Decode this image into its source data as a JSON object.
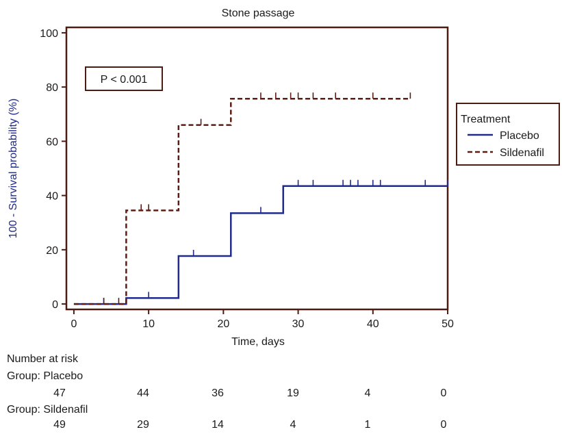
{
  "chart_data": {
    "type": "line",
    "subtype": "kaplan-meier-step",
    "title": "Stone passage",
    "xlabel": "Time, days",
    "ylabel": "100 - Survival probability (%)",
    "xlim": [
      -1,
      50
    ],
    "ylim": [
      -2,
      102
    ],
    "xticks": [
      0,
      10,
      20,
      30,
      40,
      50
    ],
    "yticks": [
      0,
      20,
      40,
      60,
      80,
      100
    ],
    "grid": false,
    "annotation": "P < 0.001",
    "legend": {
      "title": "Treatment",
      "position": "right",
      "entries": [
        "Placebo",
        "Sildenafil"
      ]
    },
    "series": [
      {
        "name": "Placebo",
        "color": "#1f2a8c",
        "dash": "solid",
        "steps": [
          [
            0,
            0
          ],
          [
            7,
            2.2
          ],
          [
            14,
            17.7
          ],
          [
            21,
            33.5
          ],
          [
            28,
            43.5
          ],
          [
            50,
            43.5
          ]
        ],
        "censored": [
          4,
          10,
          16,
          25,
          30,
          32,
          36,
          37,
          38,
          40,
          41,
          47,
          50
        ]
      },
      {
        "name": "Sildenafil",
        "color": "#5e1b12",
        "dash": "dashed",
        "steps": [
          [
            0,
            0
          ],
          [
            7,
            34.5
          ],
          [
            14,
            66
          ],
          [
            21,
            75.7
          ],
          [
            45,
            75.7
          ]
        ],
        "censored": [
          4,
          6,
          9,
          10,
          17,
          25,
          27,
          29,
          30,
          32,
          35,
          40,
          45
        ]
      }
    ]
  },
  "risk_table": {
    "heading": "Number at risk",
    "groups": [
      {
        "label": "Group: Placebo",
        "values": [
          "47",
          "44",
          "36",
          "19",
          "4",
          "0"
        ]
      },
      {
        "label": "Group: Sildenafil",
        "values": [
          "49",
          "29",
          "14",
          "4",
          "1",
          "0"
        ]
      }
    ]
  }
}
